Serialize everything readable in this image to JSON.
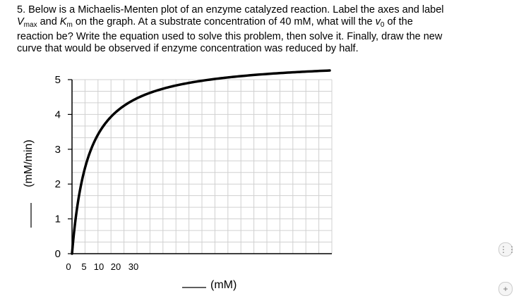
{
  "question": {
    "line1": "5. Below is a Michaelis-Menten plot of an enzyme catalyzed reaction. Label the axes and label",
    "vmax_v": "V",
    "vmax_sub": "max",
    "line2_mid": " and ",
    "km_k": "K",
    "km_sub": "m",
    "line2_end": " on the graph. At a substrate concentration of 40 mM, what will the ",
    "v0_v": "v",
    "v0_sub": "0",
    "line2_tail": " of the",
    "line3": "reaction be? Write the equation used to solve this problem, then solve it. Finally, draw the new",
    "line4": "curve that would be observed if enzyme concentration was reduced by half."
  },
  "chart_data": {
    "type": "line",
    "title": "",
    "xlabel": "_____ (mM)",
    "ylabel": "_____ (mM/min)",
    "xlabel_blank": "____",
    "xlabel_unit": "(mM)",
    "ylabel_unit": "(mM/min)",
    "x_tick_labels": [
      "0",
      "5",
      "10",
      "20",
      "30"
    ],
    "y_tick_labels": [
      "0",
      "1",
      "2",
      "3",
      "4",
      "5"
    ],
    "ylim": [
      0,
      5
    ],
    "grid": true,
    "series": [
      {
        "vmax": 5.6,
        "km": 0.34,
        "x_end": 5.3
      }
    ]
  },
  "side_controls": {
    "btn1": "⋮⋮",
    "btn2": "+"
  }
}
